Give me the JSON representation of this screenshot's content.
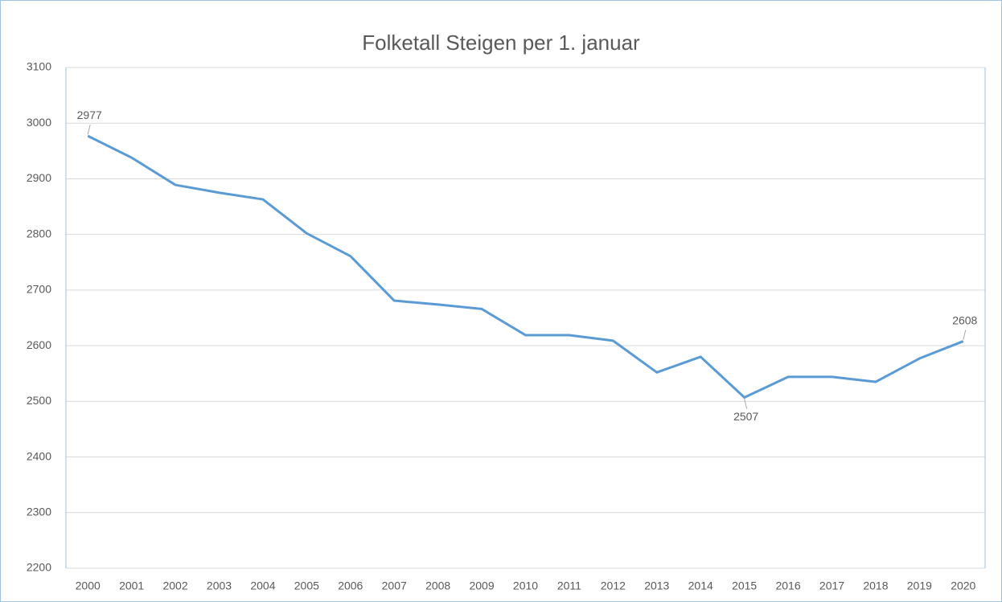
{
  "chart_data": {
    "type": "line",
    "title": "Folketall Steigen per 1. januar",
    "categories": [
      "2000",
      "2001",
      "2002",
      "2003",
      "2004",
      "2005",
      "2006",
      "2007",
      "2008",
      "2009",
      "2010",
      "2011",
      "2012",
      "2013",
      "2014",
      "2015",
      "2016",
      "2017",
      "2018",
      "2019",
      "2020"
    ],
    "series": [
      {
        "name": "Folketall",
        "color": "#5b9bd5",
        "values": [
          2977,
          2938,
          2889,
          2875,
          2863,
          2802,
          2761,
          2681,
          2674,
          2666,
          2619,
          2619,
          2609,
          2552,
          2580,
          2507,
          2544,
          2544,
          2535,
          2577,
          2608
        ]
      }
    ],
    "labeled_points": [
      0,
      15,
      20
    ],
    "ylim": [
      2200,
      3100
    ],
    "yticks": [
      2200,
      2300,
      2400,
      2500,
      2600,
      2700,
      2800,
      2900,
      3000,
      3100
    ],
    "grid": true
  }
}
